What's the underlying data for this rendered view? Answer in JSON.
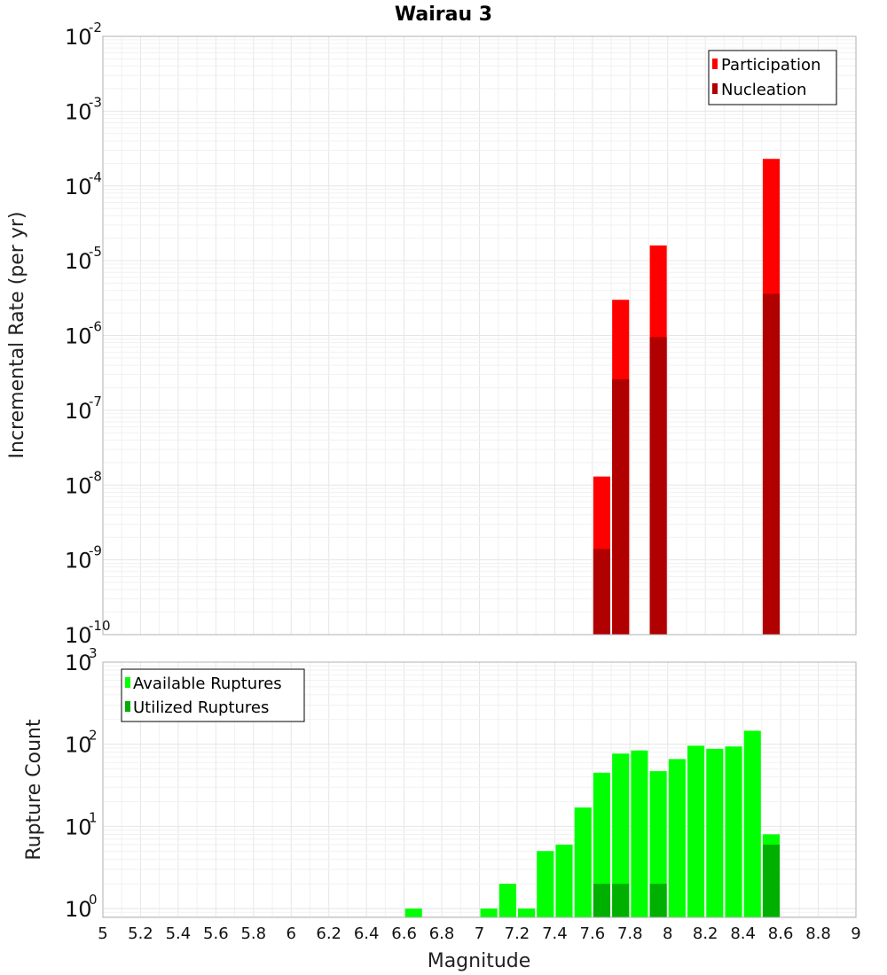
{
  "chart_data": [
    {
      "type": "bar",
      "title": "Wairau 3",
      "xlabel": "",
      "ylabel": "Incremental Rate (per yr)",
      "y_scale": "log",
      "ylim": [
        1e-10,
        0.01
      ],
      "xlim": [
        5,
        9
      ],
      "bar_width": 0.09,
      "grid": true,
      "legend_position": "top-right",
      "y_tick_labels": [
        {
          "base": "10",
          "exp": "-10"
        },
        {
          "base": "10",
          "exp": "-9"
        },
        {
          "base": "10",
          "exp": "-8"
        },
        {
          "base": "10",
          "exp": "-7"
        },
        {
          "base": "10",
          "exp": "-6"
        },
        {
          "base": "10",
          "exp": "-5"
        },
        {
          "base": "10",
          "exp": "-4"
        },
        {
          "base": "10",
          "exp": "-3"
        },
        {
          "base": "10",
          "exp": "-2"
        }
      ],
      "series": [
        {
          "name": "Participation",
          "color": "#ff0000",
          "points": [
            [
              7.65,
              1.3e-08
            ],
            [
              7.75,
              3e-06
            ],
            [
              7.95,
              1.6e-05
            ],
            [
              8.55,
              0.00023
            ]
          ]
        },
        {
          "name": "Nucleation",
          "color": "#b00000",
          "points": [
            [
              7.65,
              1.4e-09
            ],
            [
              7.75,
              2.6e-07
            ],
            [
              7.95,
              9.5e-07
            ],
            [
              8.55,
              3.6e-06
            ]
          ]
        }
      ]
    },
    {
      "type": "bar",
      "title": "",
      "xlabel": "Magnitude",
      "ylabel": "Rupture Count",
      "y_scale": "log",
      "ylim": [
        0.78,
        1000
      ],
      "xlim": [
        5,
        9
      ],
      "bar_width": 0.09,
      "grid": true,
      "legend_position": "top-left",
      "x_tick_labels": [
        "5",
        "5.2",
        "5.4",
        "5.6",
        "5.8",
        "6",
        "6.2",
        "6.4",
        "6.6",
        "6.8",
        "7",
        "7.2",
        "7.4",
        "7.6",
        "7.8",
        "8",
        "8.2",
        "8.4",
        "8.6",
        "8.8",
        "9"
      ],
      "y_tick_labels": [
        {
          "base": "10",
          "exp": "0"
        },
        {
          "base": "10",
          "exp": "1"
        },
        {
          "base": "10",
          "exp": "2"
        },
        {
          "base": "10",
          "exp": "3"
        }
      ],
      "series": [
        {
          "name": "Available Ruptures",
          "color": "#00ff00",
          "points": [
            [
              6.65,
              1
            ],
            [
              7.05,
              1
            ],
            [
              7.15,
              2
            ],
            [
              7.25,
              1
            ],
            [
              7.35,
              5
            ],
            [
              7.45,
              6
            ],
            [
              7.55,
              17
            ],
            [
              7.65,
              45
            ],
            [
              7.75,
              77
            ],
            [
              7.85,
              84
            ],
            [
              7.95,
              47
            ],
            [
              8.05,
              66
            ],
            [
              8.15,
              96
            ],
            [
              8.25,
              88
            ],
            [
              8.35,
              94
            ],
            [
              8.45,
              146
            ],
            [
              8.55,
              8
            ]
          ]
        },
        {
          "name": "Utilized Ruptures",
          "color": "#00b000",
          "points": [
            [
              7.65,
              2
            ],
            [
              7.75,
              2
            ],
            [
              7.95,
              2
            ],
            [
              8.55,
              6
            ]
          ]
        }
      ]
    }
  ]
}
